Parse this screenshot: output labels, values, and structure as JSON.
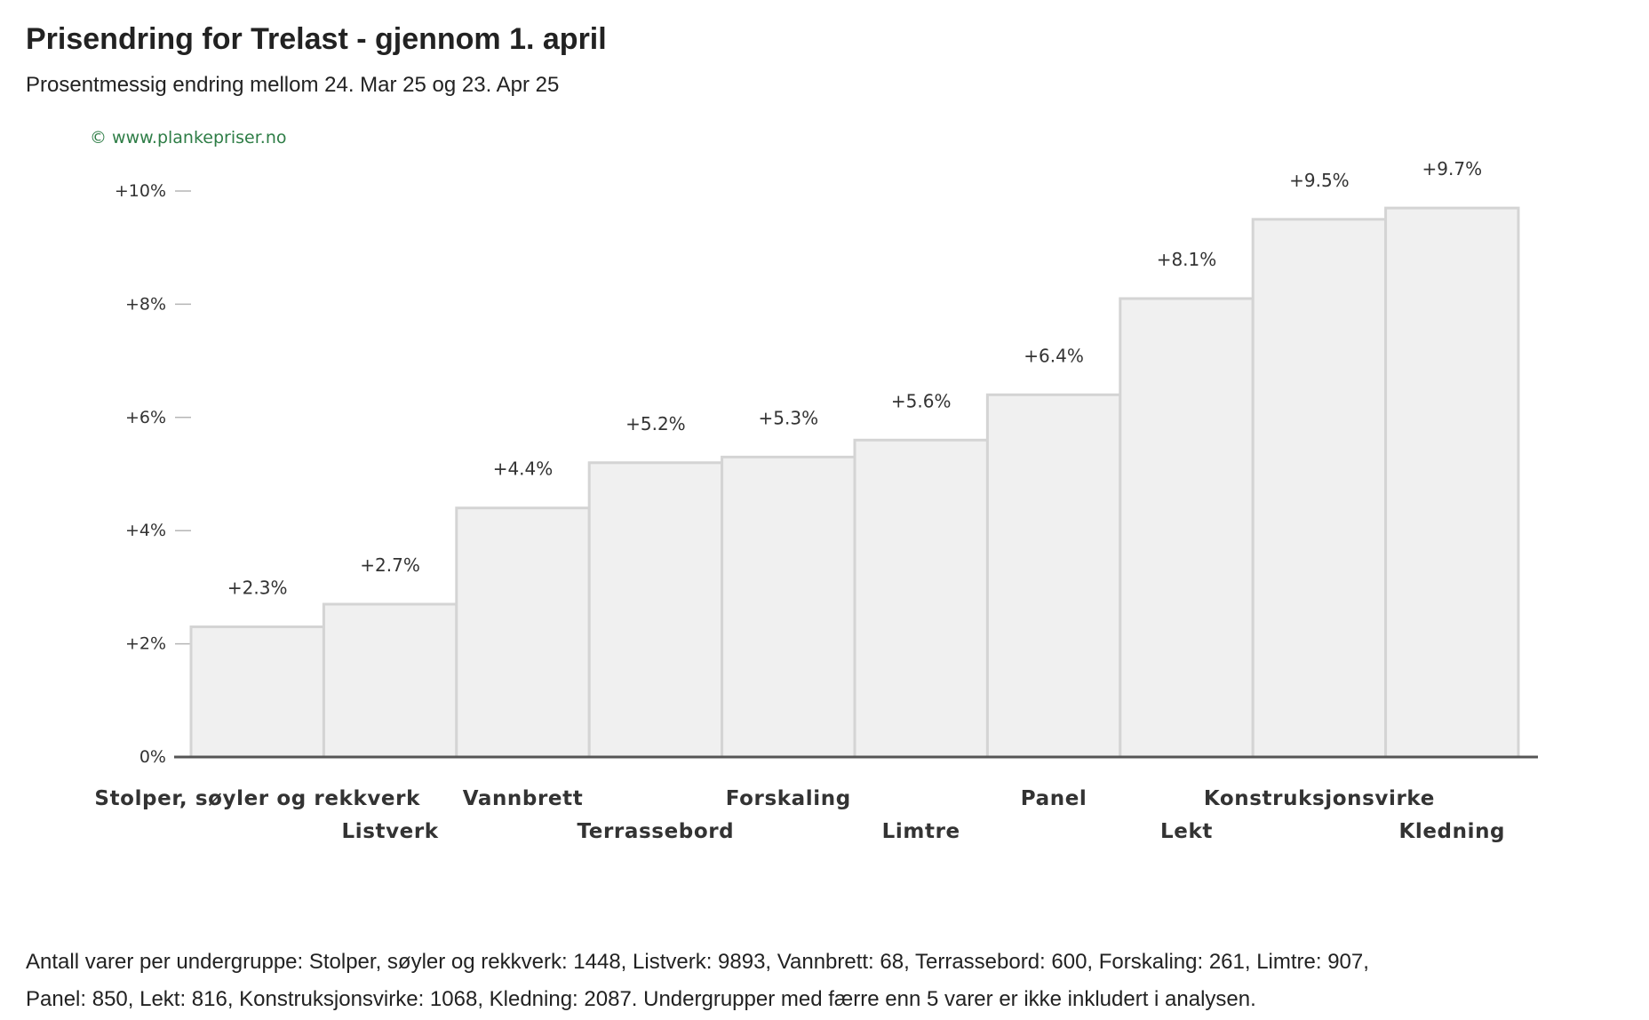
{
  "title": "Prisendring for Trelast - gjennom 1. april",
  "subtitle": "Prosentmessig endring mellom 24. Mar 25 og 23. Apr 25",
  "watermark": "© www.plankepriser.no",
  "footnote": "Antall varer per undergruppe: Stolper, søyler og rekkverk: 1448, Listverk: 9893, Vannbrett: 68, Terrassebord: 600, Forskaling: 261, Limtre: 907, Panel: 850, Lekt: 816, Konstruksjonsvirke: 1068, Kledning: 2087. Undergrupper med færre enn 5 varer er ikke inkludert i analysen.",
  "colors": {
    "bar_fill": "#f0f0f0",
    "bar_stroke": "#d4d4d4",
    "axis": "#555555",
    "watermark": "#2e7d46"
  },
  "chart_data": {
    "type": "bar",
    "title": "Prisendring for Trelast - gjennom 1. april",
    "subtitle": "Prosentmessig endring mellom 24. Mar 25 og 23. Apr 25",
    "categories": [
      "Stolper, søyler og rekkverk",
      "Listverk",
      "Vannbrett",
      "Terrassebord",
      "Forskaling",
      "Limtre",
      "Panel",
      "Lekt",
      "Konstruksjonsvirke",
      "Kledning"
    ],
    "values": [
      2.3,
      2.7,
      4.4,
      5.2,
      5.3,
      5.6,
      6.4,
      8.1,
      9.5,
      9.7
    ],
    "value_labels": [
      "+2.3%",
      "+2.7%",
      "+4.4%",
      "+5.2%",
      "+5.3%",
      "+5.6%",
      "+6.4%",
      "+8.1%",
      "+9.5%",
      "+9.7%"
    ],
    "yticks": [
      0,
      2,
      4,
      6,
      8,
      10
    ],
    "ytick_labels": [
      "0%",
      "+2%",
      "+4%",
      "+6%",
      "+8%",
      "+10%"
    ],
    "ylim": [
      0,
      10
    ],
    "xlabel": "",
    "ylabel": "",
    "grid": false,
    "legend": "none"
  }
}
